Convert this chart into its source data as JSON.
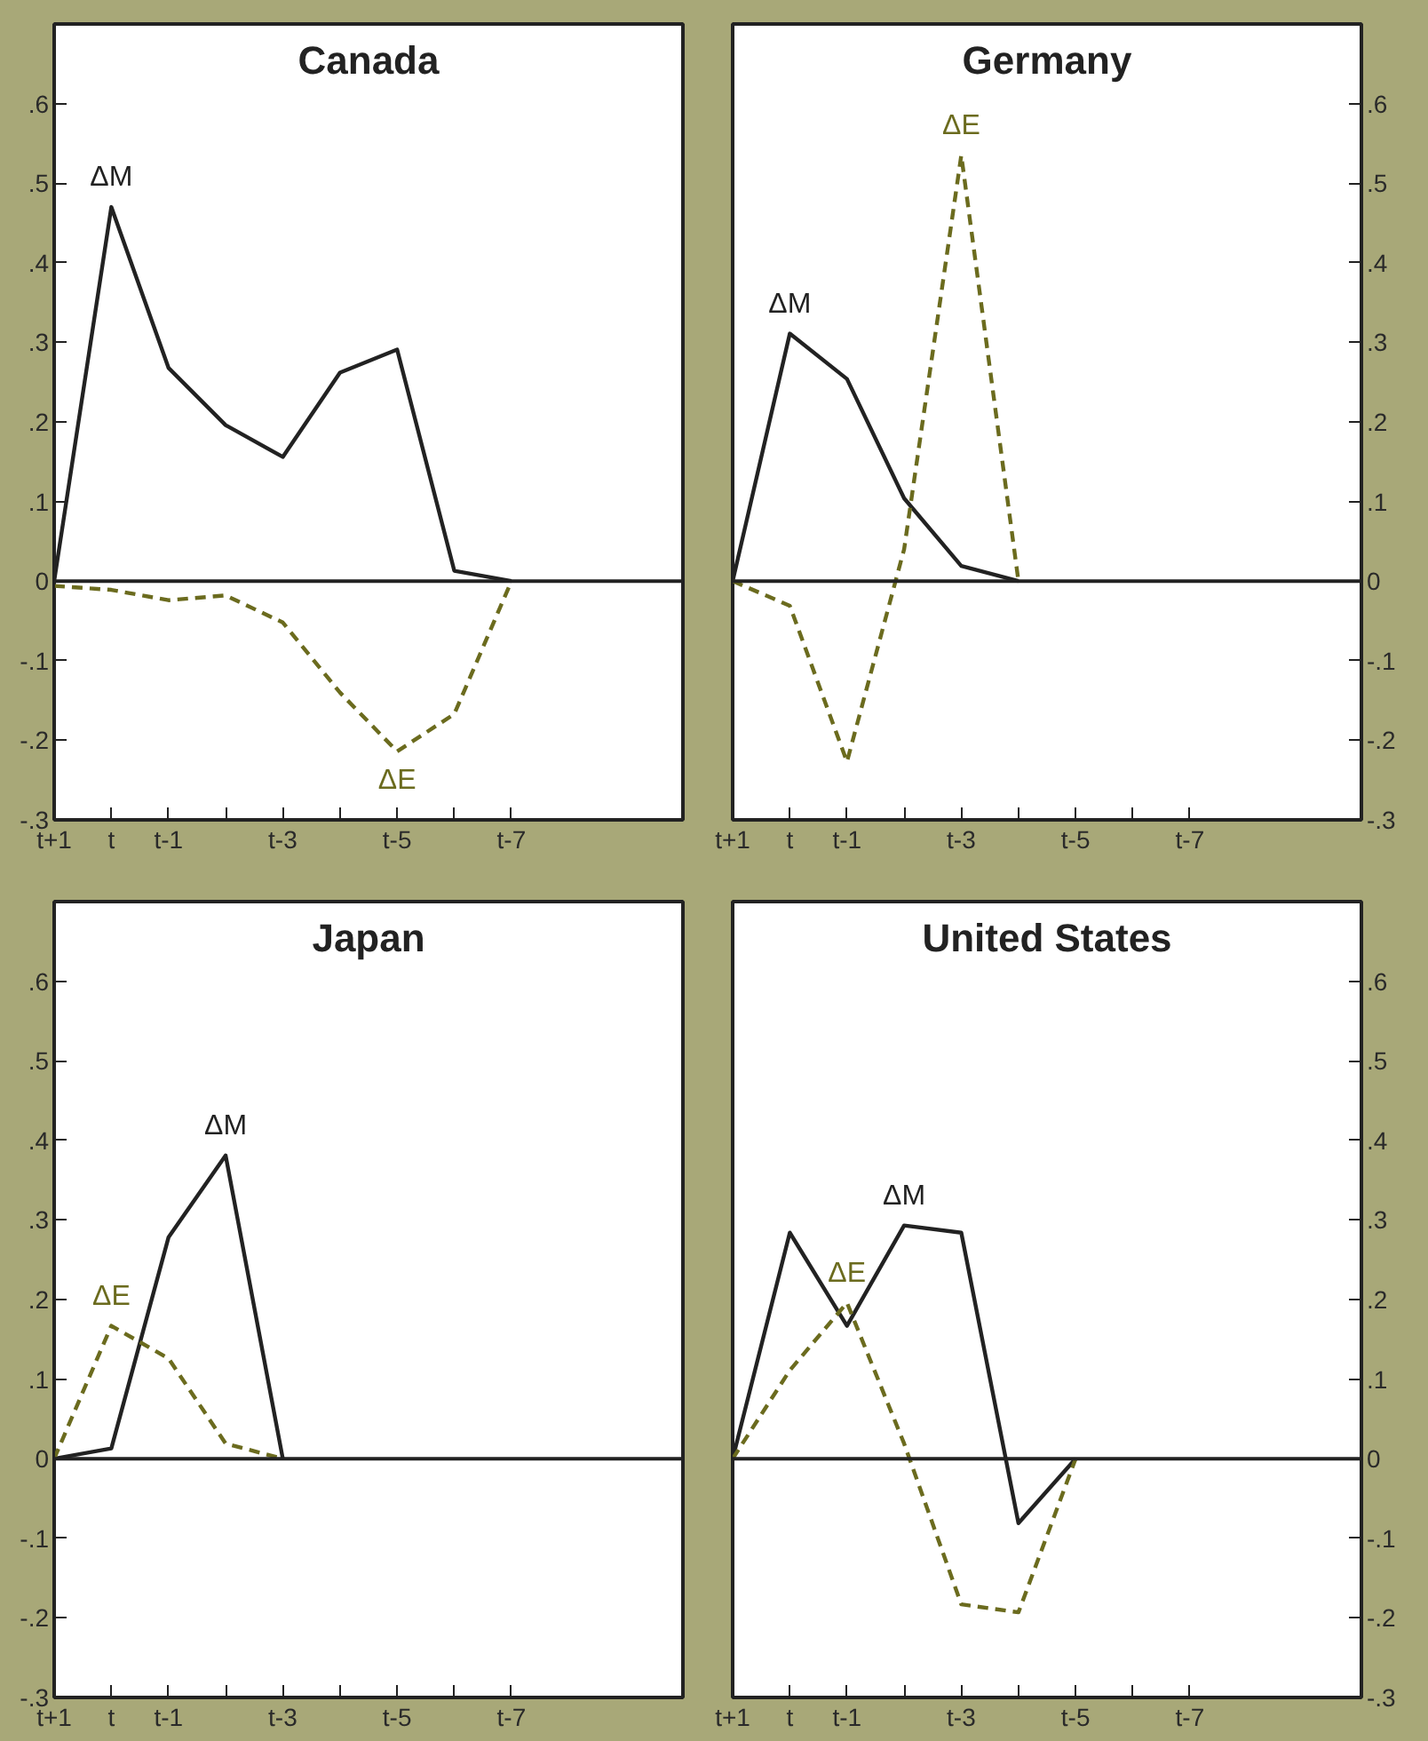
{
  "chart_data": [
    {
      "type": "line",
      "title": "Canada",
      "categories": [
        "t+1",
        "t",
        "t-1",
        null,
        "t-3",
        null,
        "t-5",
        null,
        "t-7"
      ],
      "ylim": [
        -0.3,
        0.7
      ],
      "yticks": [
        {
          "value": -0.3,
          "label": "-.3"
        },
        {
          "value": -0.2,
          "label": "-.2"
        },
        {
          "value": -0.1,
          "label": "-.1"
        },
        0,
        {
          "value": 0.1,
          "label": ".1"
        },
        {
          "value": 0.2,
          "label": ".2"
        },
        {
          "value": 0.3,
          "label": ".3"
        },
        {
          "value": 0.4,
          "label": ".4"
        },
        {
          "value": 0.5,
          "label": ".5"
        },
        {
          "value": 0.6,
          "label": ".6"
        }
      ],
      "series": [
        {
          "name": "ΔM",
          "color": "#222222",
          "line_style": "solid",
          "values": [
            0,
            0.47,
            0.268,
            0.196,
            0.156,
            0.262,
            0.291,
            0.013,
            0
          ]
        },
        {
          "name": "ΔE",
          "color": "#6b6b1e",
          "line_style": "dashed",
          "values": [
            -0.006,
            -0.011,
            -0.024,
            -0.018,
            -0.052,
            -0.14,
            -0.214,
            -0.167,
            0
          ]
        }
      ],
      "ref_lines": [
        {
          "axis": "y",
          "value": 0,
          "color": "#222222"
        }
      ]
    },
    {
      "type": "line",
      "title": "Germany",
      "categories": [
        "t+1",
        "t",
        "t-1",
        null,
        "t-3",
        null,
        "t-5",
        null,
        "t-7"
      ],
      "ylim": [
        -0.3,
        0.7
      ],
      "yticks": [
        {
          "value": -0.3,
          "label": "-.3"
        },
        {
          "value": -0.2,
          "label": "-.2"
        },
        {
          "value": -0.1,
          "label": "-.1"
        },
        0,
        {
          "value": 0.1,
          "label": ".1"
        },
        {
          "value": 0.2,
          "label": ".2"
        },
        {
          "value": 0.3,
          "label": ".3"
        },
        {
          "value": 0.4,
          "label": ".4"
        },
        {
          "value": 0.5,
          "label": ".5"
        },
        {
          "value": 0.6,
          "label": ".6"
        }
      ],
      "series": [
        {
          "name": "ΔM",
          "color": "#222222",
          "line_style": "solid",
          "values": [
            0,
            0.311,
            0.254,
            0.104,
            0.019,
            0,
            null,
            null,
            null
          ]
        },
        {
          "name": "ΔE",
          "color": "#6b6b1e",
          "line_style": "dashed",
          "values": [
            0,
            -0.031,
            -0.227,
            0.04,
            0.535,
            0,
            null,
            null,
            null
          ]
        }
      ],
      "ref_lines": [
        {
          "axis": "y",
          "value": 0,
          "color": "#222222"
        }
      ]
    },
    {
      "type": "line",
      "title": "Japan",
      "categories": [
        "t+1",
        "t",
        "t-1",
        null,
        "t-3",
        null,
        "t-5",
        null,
        "t-7"
      ],
      "ylim": [
        -0.3,
        0.7
      ],
      "yticks": [
        {
          "value": -0.3,
          "label": "-.3"
        },
        {
          "value": -0.2,
          "label": "-.2"
        },
        {
          "value": -0.1,
          "label": "-.1"
        },
        0,
        {
          "value": 0.1,
          "label": ".1"
        },
        {
          "value": 0.2,
          "label": ".2"
        },
        {
          "value": 0.3,
          "label": ".3"
        },
        {
          "value": 0.4,
          "label": ".4"
        },
        {
          "value": 0.5,
          "label": ".5"
        },
        {
          "value": 0.6,
          "label": ".6"
        }
      ],
      "series": [
        {
          "name": "ΔM",
          "color": "#222222",
          "line_style": "solid",
          "values": [
            0,
            0.013,
            0.278,
            0.381,
            0,
            null,
            null,
            null,
            null
          ]
        },
        {
          "name": "ΔE",
          "color": "#6b6b1e",
          "line_style": "dashed",
          "values": [
            0,
            0.167,
            0.126,
            0.019,
            0,
            null,
            null,
            null,
            null
          ]
        }
      ],
      "ref_lines": [
        {
          "axis": "y",
          "value": 0,
          "color": "#222222"
        }
      ]
    },
    {
      "type": "line",
      "title": "United States",
      "categories": [
        "t+1",
        "t",
        "t-1",
        null,
        "t-3",
        null,
        "t-5",
        null,
        "t-7"
      ],
      "ylim": [
        -0.3,
        0.7
      ],
      "yticks": [
        {
          "value": -0.3,
          "label": "-.3"
        },
        {
          "value": -0.2,
          "label": "-.2"
        },
        {
          "value": -0.1,
          "label": "-.1"
        },
        0,
        {
          "value": 0.1,
          "label": ".1"
        },
        {
          "value": 0.2,
          "label": ".2"
        },
        {
          "value": 0.3,
          "label": ".3"
        },
        {
          "value": 0.4,
          "label": ".4"
        },
        {
          "value": 0.5,
          "label": ".5"
        },
        {
          "value": 0.6,
          "label": ".6"
        }
      ],
      "series": [
        {
          "name": "ΔM",
          "color": "#222222",
          "line_style": "solid",
          "values": [
            0,
            0.284,
            0.167,
            0.293,
            0.284,
            -0.081,
            0,
            null,
            null
          ]
        },
        {
          "name": "ΔE",
          "color": "#6b6b1e",
          "line_style": "dashed",
          "values": [
            0,
            0.111,
            0.196,
            0.019,
            -0.183,
            -0.193,
            0,
            null,
            null
          ]
        }
      ],
      "ref_lines": [
        {
          "axis": "y",
          "value": 0,
          "color": "#222222"
        }
      ]
    }
  ]
}
